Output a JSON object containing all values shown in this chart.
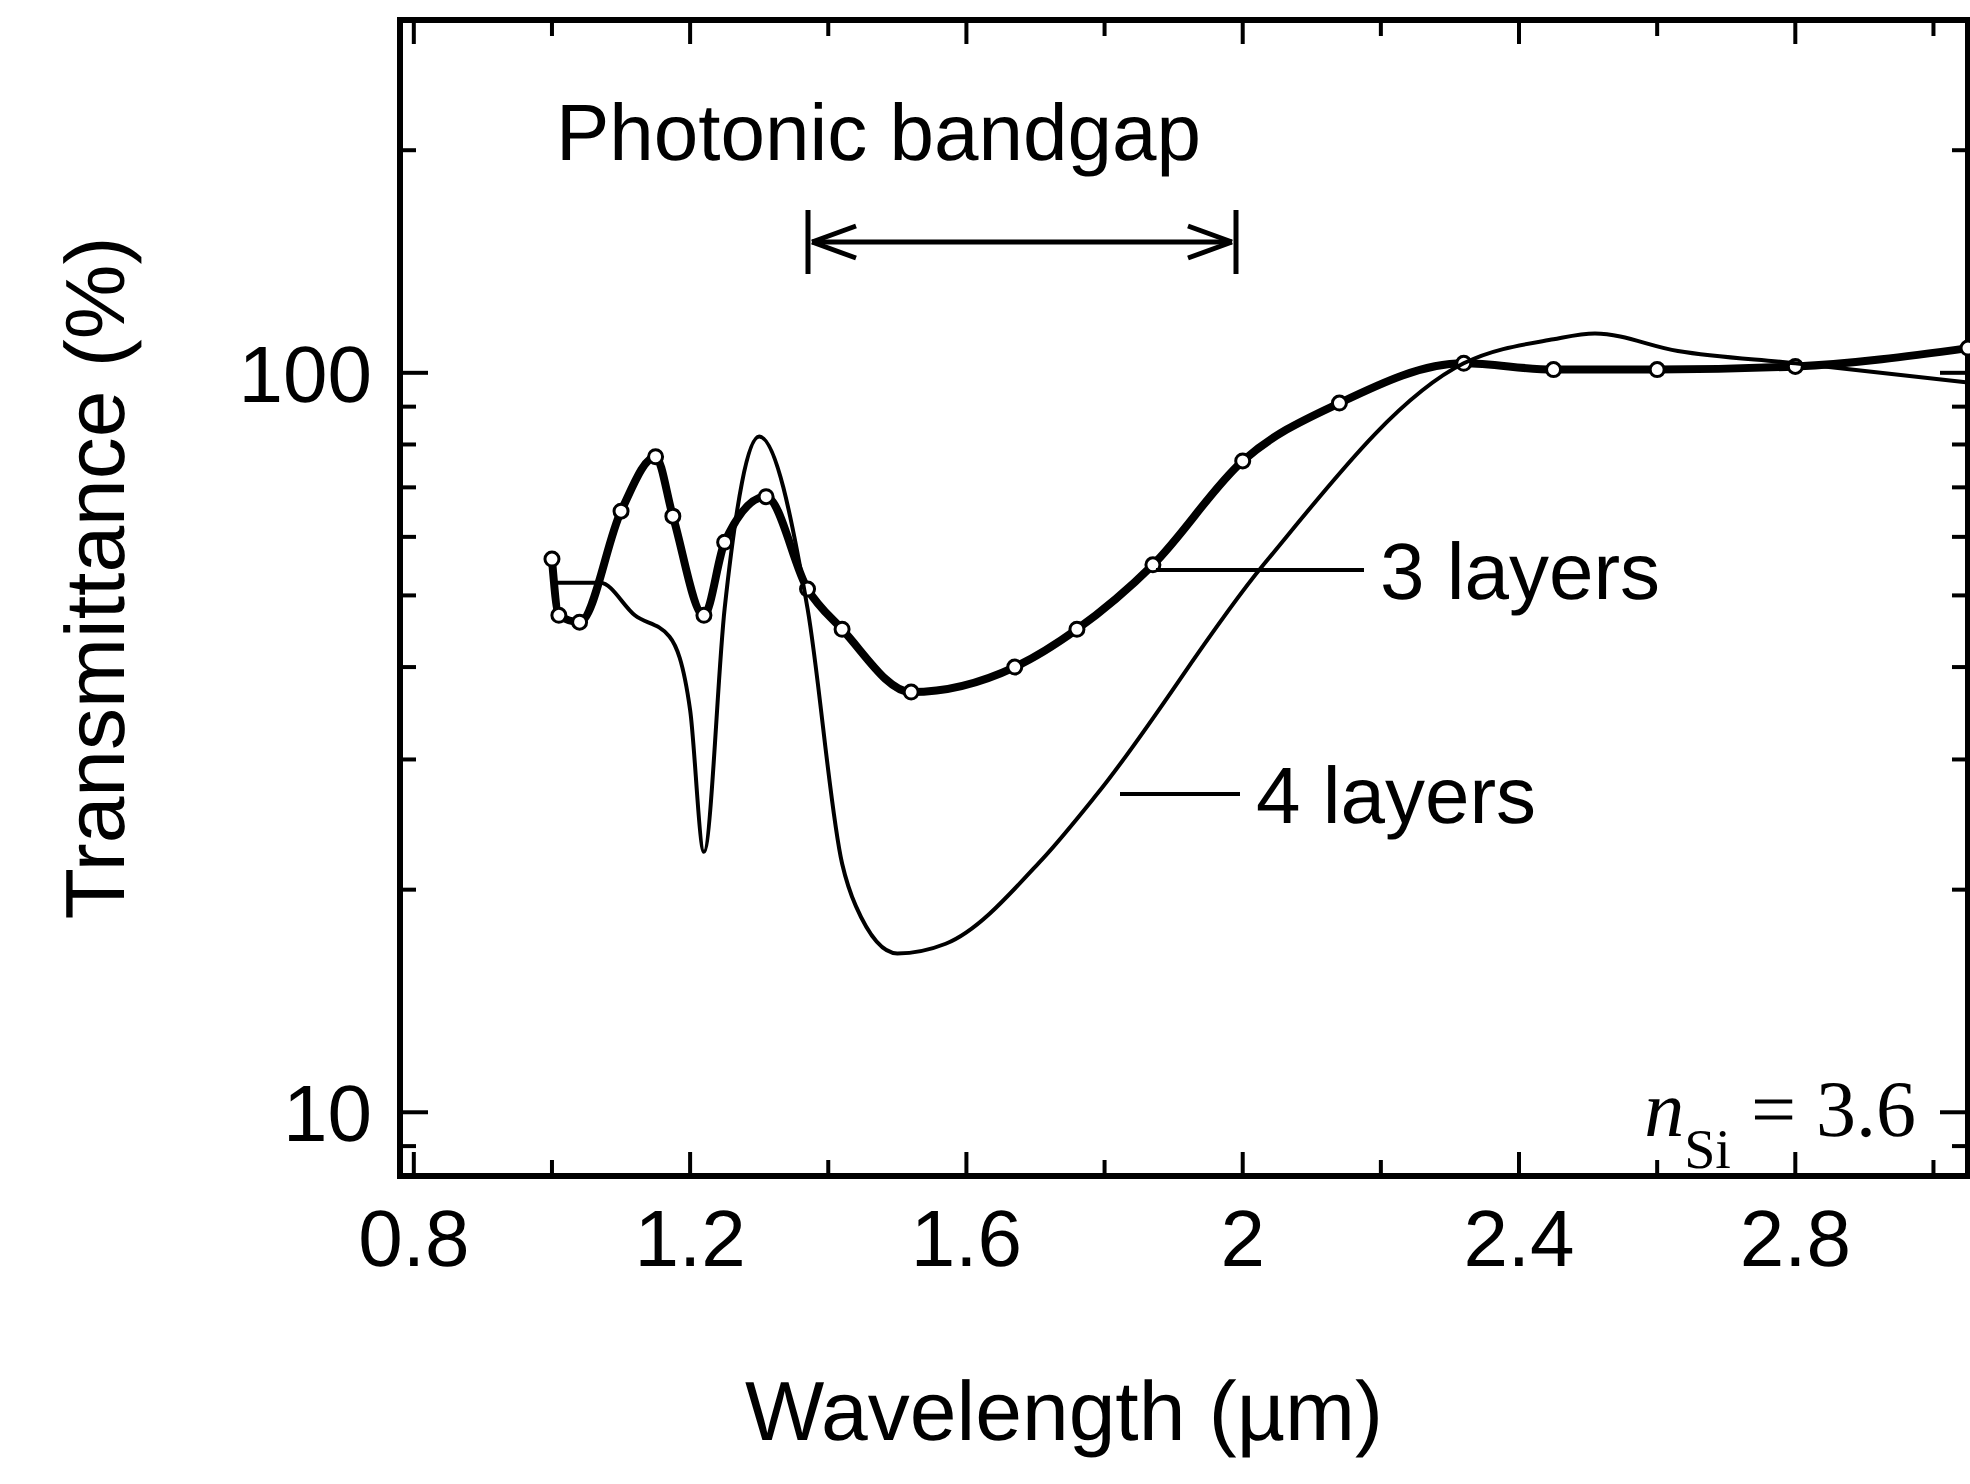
{
  "chart_data": {
    "type": "line",
    "xlabel": "Wavelength (µm)",
    "ylabel": "Transmittance (%)",
    "annotations": [
      "Photonic bandgap",
      "n$_{Si}$ = 3.6"
    ],
    "xlim": [
      0.78,
      3.05
    ],
    "ylim": [
      8.2,
      300
    ],
    "log": "y",
    "grid": false,
    "legend": "right",
    "line_style": "solid",
    "xticks": [
      0.8,
      {
        "value": 1.0,
        "label": null
      },
      1.2,
      {
        "value": 1.4,
        "label": null
      },
      1.6,
      {
        "value": 1.8,
        "label": null
      },
      2,
      {
        "value": 2.2,
        "label": null
      },
      2.4,
      {
        "value": 2.6,
        "label": null
      },
      2.8,
      {
        "value": 3.0,
        "label": null
      }
    ],
    "yticks": [
      {
        "value": 9,
        "label": null
      },
      10,
      {
        "value": 20,
        "label": null
      },
      {
        "value": 30,
        "label": null
      },
      {
        "value": 40,
        "label": null
      },
      {
        "value": 50,
        "label": null
      },
      {
        "value": 60,
        "label": null
      },
      {
        "value": 70,
        "label": null
      },
      {
        "value": 80,
        "label": null
      },
      {
        "value": 90,
        "label": null
      },
      100,
      {
        "value": 200,
        "label": null
      },
      {
        "value": 300,
        "label": null
      }
    ],
    "series": [
      {
        "name": "3 layers",
        "color": "#000000",
        "marker": "circle",
        "x": [
          1.0,
          1.01,
          1.04,
          1.1,
          1.15,
          1.175,
          1.22,
          1.25,
          1.31,
          1.37,
          1.42,
          1.52,
          1.67,
          1.76,
          1.87,
          2.0,
          2.14,
          2.32,
          2.45,
          2.6,
          2.8,
          3.05
        ],
        "values": [
          56,
          47,
          46,
          65,
          77,
          64,
          47,
          59,
          68,
          51,
          45,
          37,
          40,
          45,
          55,
          76,
          91,
          103,
          101,
          101,
          102,
          108
        ]
      },
      {
        "name": "4 layers",
        "color": "#000000",
        "marker": "none",
        "x": [
          1.0,
          1.07,
          1.12,
          1.17,
          1.2,
          1.22,
          1.25,
          1.3,
          1.37,
          1.42,
          1.44,
          1.5,
          1.57,
          1.71,
          1.79,
          2.03,
          2.32,
          2.45,
          2.51,
          2.63,
          2.8,
          3.05
        ],
        "values": [
          52,
          52,
          47,
          44,
          35,
          22.5,
          48,
          82,
          48,
          21.7,
          19,
          16.4,
          16.9,
          22,
          27,
          55,
          103,
          111,
          113,
          107,
          103,
          97
        ]
      }
    ]
  }
}
